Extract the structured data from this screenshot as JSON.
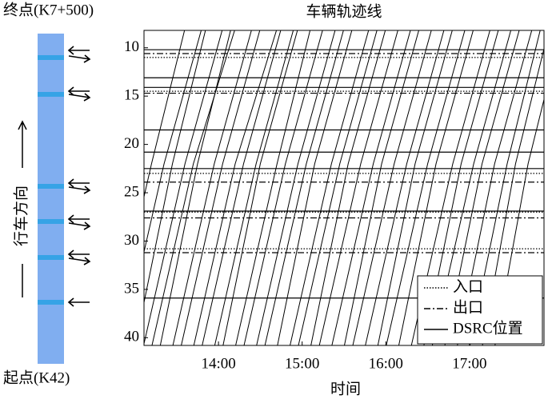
{
  "road_panel": {
    "end_label": "终点(K7+500)",
    "start_label": "起点(K42)",
    "direction_label": "行车方向"
  },
  "chart_data": {
    "type": "trajectory",
    "title": "车辆轨迹线",
    "x_label": "时间",
    "xlim": [
      13.11,
      17.89
    ],
    "ylim": [
      40.8,
      8.2
    ],
    "xticks": [
      {
        "value": 14,
        "label": "14:00"
      },
      {
        "value": 15,
        "label": "15:00"
      },
      {
        "value": 16,
        "label": "16:00"
      },
      {
        "value": 17,
        "label": "17:00"
      }
    ],
    "yticks": [
      10,
      15,
      20,
      25,
      30,
      35,
      40
    ],
    "color": "#000000",
    "legend": "bottom-right",
    "reference_lines": [
      {
        "name": "入口",
        "style": "dotted",
        "values": [
          11.0,
          14.5,
          23.0,
          27.0,
          30.8
        ]
      },
      {
        "name": "出口",
        "style": "dashdot",
        "values": [
          10.6,
          14.7,
          23.9,
          27.6,
          31.2
        ]
      },
      {
        "name": "DSRC位置",
        "style": "solid",
        "values": [
          10.2,
          13.1,
          14.1,
          18.5,
          20.8,
          22.5,
          26.9,
          35.9
        ]
      }
    ],
    "series": [
      {
        "x": [
          12.7,
          13.2,
          13.6
        ],
        "values": [
          41,
          22,
          8
        ]
      },
      {
        "x": [
          12.85,
          13.35,
          13.8
        ],
        "values": [
          41,
          22,
          8
        ]
      },
      {
        "x": [
          13.0,
          13.45,
          13.85
        ],
        "values": [
          41,
          22,
          8
        ]
      },
      {
        "x": [
          13.1,
          13.6,
          14.05
        ],
        "values": [
          41,
          22,
          8
        ]
      },
      {
        "x": [
          13.2,
          13.7,
          14.2
        ],
        "values": [
          41,
          22,
          8
        ]
      },
      {
        "x": [
          13.3,
          13.75,
          14.15
        ],
        "values": [
          41,
          22,
          8
        ]
      },
      {
        "x": [
          13.45,
          13.95,
          14.4
        ],
        "values": [
          41,
          22,
          8
        ]
      },
      {
        "x": [
          13.55,
          14.05,
          14.5
        ],
        "values": [
          41,
          22,
          8
        ]
      },
      {
        "x": [
          13.7,
          14.2,
          14.7
        ],
        "values": [
          41,
          22,
          8
        ]
      },
      {
        "x": [
          13.8,
          14.3,
          14.75
        ],
        "values": [
          41,
          22,
          8
        ]
      },
      {
        "x": [
          13.95,
          14.45,
          14.9
        ],
        "values": [
          41,
          22,
          8
        ]
      },
      {
        "x": [
          14.05,
          14.5,
          14.95
        ],
        "values": [
          41,
          22,
          8
        ]
      },
      {
        "x": [
          14.2,
          14.7,
          15.1
        ],
        "values": [
          41,
          22,
          8
        ]
      },
      {
        "x": [
          14.3,
          14.8,
          15.25
        ],
        "values": [
          41,
          22,
          8
        ]
      },
      {
        "x": [
          14.45,
          14.95,
          15.4
        ],
        "values": [
          41,
          22,
          8
        ]
      },
      {
        "x": [
          14.55,
          15.05,
          15.5
        ],
        "values": [
          41,
          22,
          8
        ]
      },
      {
        "x": [
          14.7,
          15.15,
          15.6
        ],
        "values": [
          41,
          22,
          8
        ]
      },
      {
        "x": [
          14.85,
          15.35,
          15.8
        ],
        "values": [
          41,
          22,
          8
        ]
      },
      {
        "x": [
          14.95,
          15.45,
          15.9
        ],
        "values": [
          41,
          22,
          8
        ]
      },
      {
        "x": [
          15.1,
          15.55,
          16.0
        ],
        "values": [
          41,
          22,
          8
        ]
      },
      {
        "x": [
          15.2,
          15.7,
          16.15
        ],
        "values": [
          41,
          22,
          8
        ]
      },
      {
        "x": [
          15.35,
          15.85,
          16.3
        ],
        "values": [
          41,
          22,
          8
        ]
      },
      {
        "x": [
          15.5,
          15.95,
          16.4
        ],
        "values": [
          41,
          22,
          8
        ]
      },
      {
        "x": [
          15.6,
          16.1,
          16.55
        ],
        "values": [
          41,
          22,
          8
        ]
      },
      {
        "x": [
          15.75,
          16.25,
          16.7
        ],
        "values": [
          41,
          22,
          8
        ]
      },
      {
        "x": [
          15.9,
          16.35,
          16.8
        ],
        "values": [
          41,
          22,
          8
        ]
      },
      {
        "x": [
          16.0,
          16.5,
          16.95
        ],
        "values": [
          41,
          22,
          8
        ]
      },
      {
        "x": [
          16.15,
          16.6,
          17.05
        ],
        "values": [
          41,
          22,
          8
        ]
      },
      {
        "x": [
          16.3,
          16.8,
          17.25
        ],
        "values": [
          41,
          22,
          8
        ]
      },
      {
        "x": [
          16.45,
          16.9,
          17.35
        ],
        "values": [
          41,
          22,
          8
        ]
      },
      {
        "x": [
          16.55,
          17.05,
          17.5
        ],
        "values": [
          41,
          22,
          8
        ]
      },
      {
        "x": [
          16.7,
          17.15,
          17.6
        ],
        "values": [
          41,
          22,
          8
        ]
      },
      {
        "x": [
          16.85,
          17.3,
          17.75
        ],
        "values": [
          41,
          22,
          8
        ]
      },
      {
        "x": [
          17.0,
          17.45,
          17.85
        ],
        "values": [
          41,
          22,
          8
        ]
      },
      {
        "x": [
          17.15,
          17.55,
          17.95
        ],
        "values": [
          41,
          22,
          8
        ]
      },
      {
        "x": [
          17.3,
          17.7,
          18.1
        ],
        "values": [
          41,
          22,
          8
        ]
      }
    ]
  }
}
